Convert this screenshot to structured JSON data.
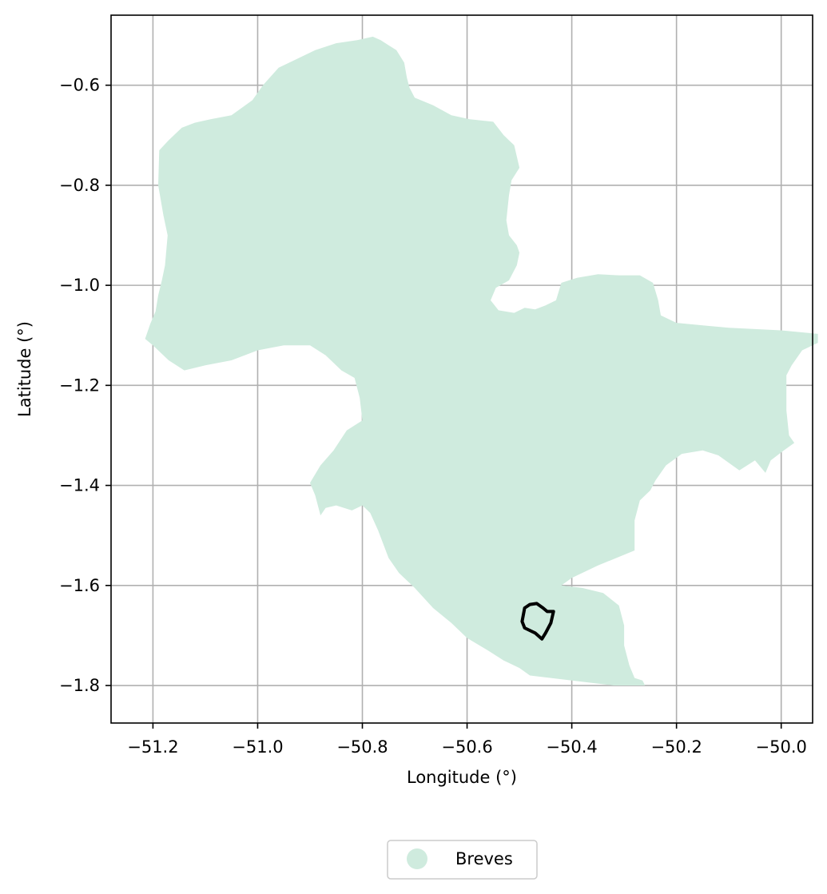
{
  "chart_data": {
    "type": "map",
    "xlabel": "Longitude (°)",
    "ylabel": "Latitude (°)",
    "xlim": [
      -51.28,
      -49.94
    ],
    "ylim": [
      -1.875,
      -0.46
    ],
    "grid": true,
    "x_ticks": [
      -51.2,
      -51.0,
      -50.8,
      -50.6,
      -50.4,
      -50.2,
      -50.0
    ],
    "x_tick_labels": [
      "−51.2",
      "−51.0",
      "−50.8",
      "−50.6",
      "−50.4",
      "−50.2",
      "−50.0"
    ],
    "y_ticks": [
      -0.6,
      -0.8,
      -1.0,
      -1.2,
      -1.4,
      -1.6,
      -1.8
    ],
    "y_tick_labels": [
      "−0.6",
      "−0.8",
      "−1.0",
      "−1.2",
      "−1.4",
      "−1.6",
      "−1.8"
    ],
    "legend": {
      "position": "bottom-center",
      "entries": [
        "Breves"
      ]
    },
    "colors": {
      "region_fill": "#cfebde",
      "outline": "#000000",
      "grid": "#b0b0b0"
    },
    "region": {
      "name": "Breves",
      "boundary": [
        [
          -51.215,
          -1.107
        ],
        [
          -51.205,
          -1.077
        ],
        [
          -51.195,
          -1.052
        ],
        [
          -51.19,
          -1.02
        ],
        [
          -51.183,
          -0.99
        ],
        [
          -51.177,
          -0.96
        ],
        [
          -51.172,
          -0.9
        ],
        [
          -51.18,
          -0.86
        ],
        [
          -51.19,
          -0.8
        ],
        [
          -51.188,
          -0.73
        ],
        [
          -51.17,
          -0.71
        ],
        [
          -51.145,
          -0.685
        ],
        [
          -51.12,
          -0.675
        ],
        [
          -51.09,
          -0.668
        ],
        [
          -51.05,
          -0.66
        ],
        [
          -51.01,
          -0.63
        ],
        [
          -50.99,
          -0.6
        ],
        [
          -50.96,
          -0.565
        ],
        [
          -50.93,
          -0.55
        ],
        [
          -50.89,
          -0.53
        ],
        [
          -50.85,
          -0.516
        ],
        [
          -50.81,
          -0.51
        ],
        [
          -50.78,
          -0.503
        ],
        [
          -50.765,
          -0.51
        ],
        [
          -50.75,
          -0.52
        ],
        [
          -50.735,
          -0.53
        ],
        [
          -50.72,
          -0.555
        ],
        [
          -50.715,
          -0.585
        ],
        [
          -50.71,
          -0.605
        ],
        [
          -50.7,
          -0.625
        ],
        [
          -50.665,
          -0.64
        ],
        [
          -50.63,
          -0.66
        ],
        [
          -50.595,
          -0.668
        ],
        [
          -50.55,
          -0.673
        ],
        [
          -50.53,
          -0.7
        ],
        [
          -50.51,
          -0.72
        ],
        [
          -50.5,
          -0.765
        ],
        [
          -50.515,
          -0.79
        ],
        [
          -50.52,
          -0.82
        ],
        [
          -50.525,
          -0.87
        ],
        [
          -50.52,
          -0.9
        ],
        [
          -50.505,
          -0.92
        ],
        [
          -50.5,
          -0.935
        ],
        [
          -50.505,
          -0.96
        ],
        [
          -50.52,
          -0.99
        ],
        [
          -50.545,
          -1.005
        ],
        [
          -50.555,
          -1.03
        ],
        [
          -50.54,
          -1.05
        ],
        [
          -50.51,
          -1.055
        ],
        [
          -50.49,
          -1.045
        ],
        [
          -50.47,
          -1.048
        ],
        [
          -50.45,
          -1.04
        ],
        [
          -50.43,
          -1.03
        ],
        [
          -50.42,
          -0.995
        ],
        [
          -50.39,
          -0.985
        ],
        [
          -50.35,
          -0.978
        ],
        [
          -50.31,
          -0.98
        ],
        [
          -50.27,
          -0.98
        ],
        [
          -50.245,
          -0.995
        ],
        [
          -50.235,
          -1.03
        ],
        [
          -50.23,
          -1.06
        ],
        [
          -50.2,
          -1.075
        ],
        [
          -50.1,
          -1.085
        ],
        [
          -50.0,
          -1.09
        ],
        [
          -49.93,
          -1.097
        ],
        [
          -49.93,
          -1.115
        ],
        [
          -49.96,
          -1.13
        ],
        [
          -49.98,
          -1.16
        ],
        [
          -49.99,
          -1.18
        ],
        [
          -49.99,
          -1.25
        ],
        [
          -49.985,
          -1.3
        ],
        [
          -49.975,
          -1.315
        ],
        [
          -49.995,
          -1.33
        ],
        [
          -50.02,
          -1.35
        ],
        [
          -50.03,
          -1.375
        ],
        [
          -50.05,
          -1.35
        ],
        [
          -50.08,
          -1.37
        ],
        [
          -50.12,
          -1.34
        ],
        [
          -50.15,
          -1.33
        ],
        [
          -50.19,
          -1.337
        ],
        [
          -50.22,
          -1.36
        ],
        [
          -50.24,
          -1.39
        ],
        [
          -50.25,
          -1.41
        ],
        [
          -50.27,
          -1.43
        ],
        [
          -50.28,
          -1.47
        ],
        [
          -50.28,
          -1.53
        ],
        [
          -50.35,
          -1.56
        ],
        [
          -50.4,
          -1.585
        ],
        [
          -50.42,
          -1.6
        ],
        [
          -50.38,
          -1.605
        ],
        [
          -50.34,
          -1.615
        ],
        [
          -50.31,
          -1.64
        ],
        [
          -50.3,
          -1.68
        ],
        [
          -50.3,
          -1.72
        ],
        [
          -50.29,
          -1.76
        ],
        [
          -50.28,
          -1.785
        ],
        [
          -50.265,
          -1.79
        ],
        [
          -50.26,
          -1.8
        ],
        [
          -50.32,
          -1.8
        ],
        [
          -50.36,
          -1.795
        ],
        [
          -50.4,
          -1.79
        ],
        [
          -50.44,
          -1.785
        ],
        [
          -50.48,
          -1.78
        ],
        [
          -50.5,
          -1.765
        ],
        [
          -50.53,
          -1.75
        ],
        [
          -50.56,
          -1.73
        ],
        [
          -50.6,
          -1.705
        ],
        [
          -50.63,
          -1.675
        ],
        [
          -50.665,
          -1.645
        ],
        [
          -50.7,
          -1.605
        ],
        [
          -50.73,
          -1.575
        ],
        [
          -50.75,
          -1.545
        ],
        [
          -50.77,
          -1.49
        ],
        [
          -50.785,
          -1.455
        ],
        [
          -50.8,
          -1.44
        ],
        [
          -50.82,
          -1.45
        ],
        [
          -50.85,
          -1.44
        ],
        [
          -50.87,
          -1.445
        ],
        [
          -50.88,
          -1.46
        ],
        [
          -50.89,
          -1.42
        ],
        [
          -50.9,
          -1.395
        ],
        [
          -50.88,
          -1.36
        ],
        [
          -50.855,
          -1.33
        ],
        [
          -50.83,
          -1.29
        ],
        [
          -50.8,
          -1.27
        ],
        [
          -50.805,
          -1.225
        ],
        [
          -50.815,
          -1.185
        ],
        [
          -50.84,
          -1.17
        ],
        [
          -50.87,
          -1.14
        ],
        [
          -50.9,
          -1.12
        ],
        [
          -50.95,
          -1.12
        ],
        [
          -51.0,
          -1.13
        ],
        [
          -51.05,
          -1.15
        ],
        [
          -51.1,
          -1.16
        ],
        [
          -51.14,
          -1.17
        ],
        [
          -51.17,
          -1.15
        ],
        [
          -51.2,
          -1.12
        ]
      ]
    },
    "highlight": {
      "boundary": [
        [
          -50.467,
          -1.636
        ],
        [
          -50.455,
          -1.645
        ],
        [
          -50.447,
          -1.652
        ],
        [
          -50.435,
          -1.652
        ],
        [
          -50.44,
          -1.675
        ],
        [
          -50.45,
          -1.695
        ],
        [
          -50.457,
          -1.707
        ],
        [
          -50.47,
          -1.695
        ],
        [
          -50.49,
          -1.685
        ],
        [
          -50.495,
          -1.672
        ],
        [
          -50.49,
          -1.645
        ],
        [
          -50.48,
          -1.638
        ]
      ]
    }
  }
}
